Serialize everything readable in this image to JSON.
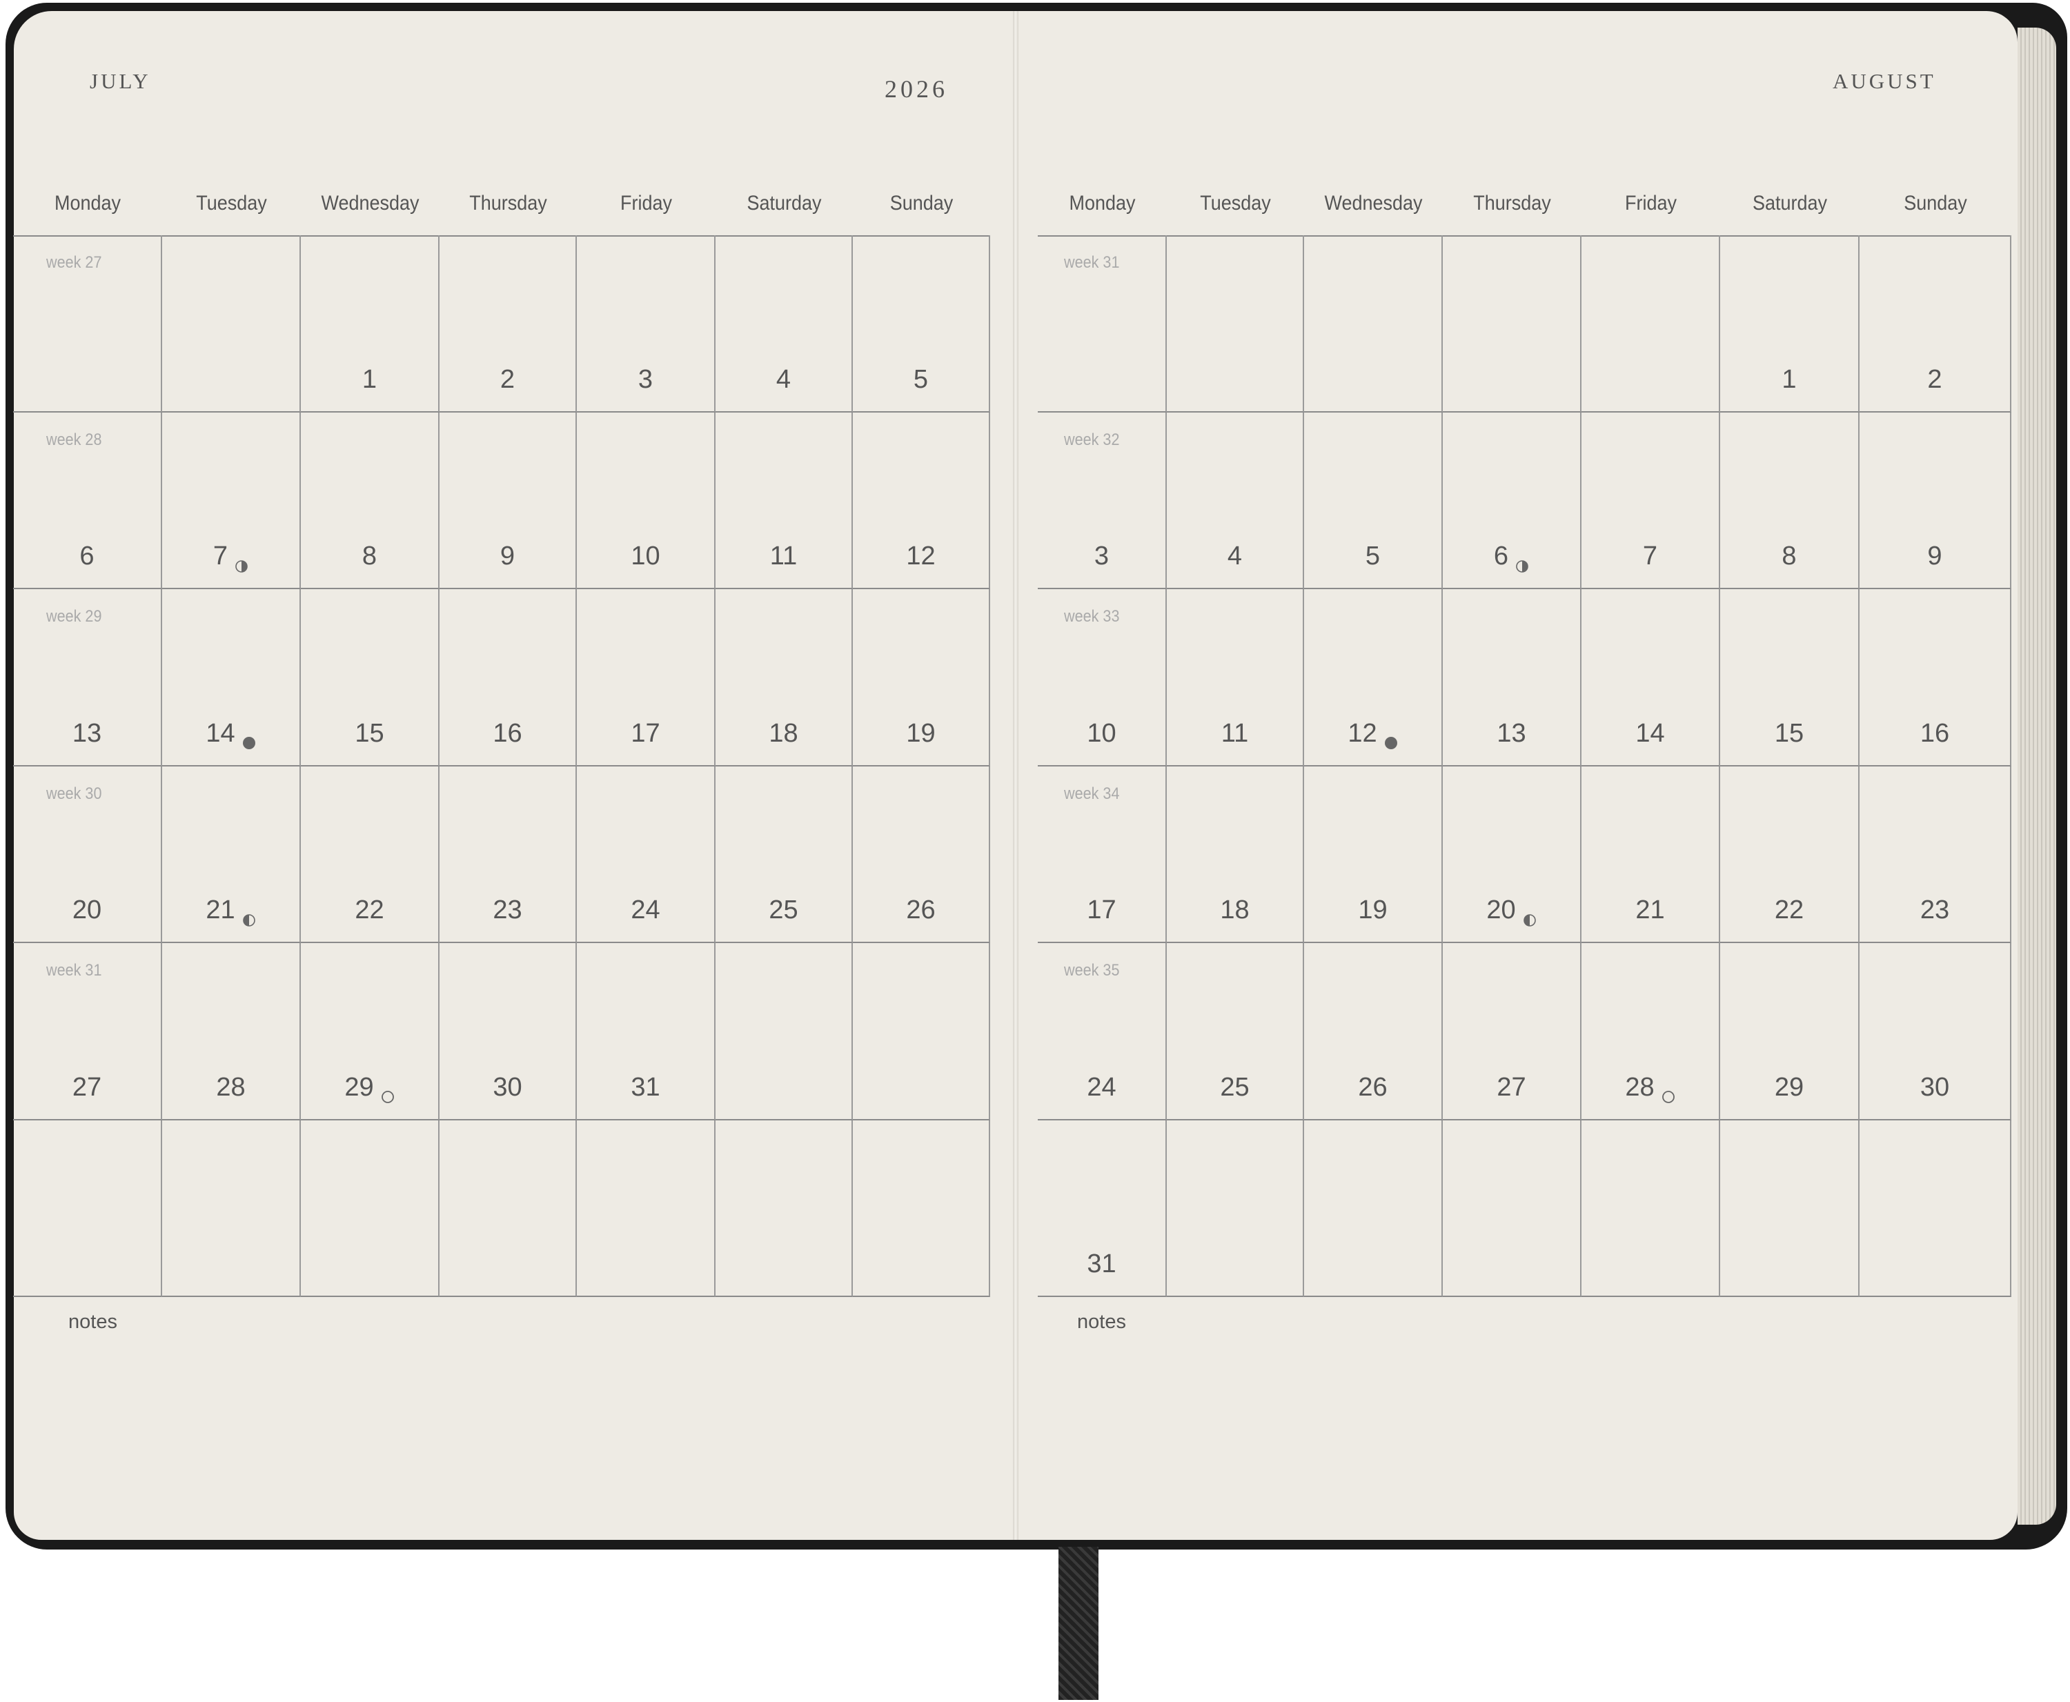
{
  "weekdays": [
    "Monday",
    "Tuesday",
    "Wednesday",
    "Thursday",
    "Friday",
    "Saturday",
    "Sunday"
  ],
  "year": "2026",
  "notes_label": "notes",
  "months": [
    {
      "name": "JULY",
      "weeks": [
        {
          "label": "week 27",
          "days": [
            "",
            "",
            "1",
            "2",
            "3",
            "4",
            "5"
          ]
        },
        {
          "label": "week 28",
          "days": [
            "6",
            "7",
            "8",
            "9",
            "10",
            "11",
            "12"
          ]
        },
        {
          "label": "week 29",
          "days": [
            "13",
            "14",
            "15",
            "16",
            "17",
            "18",
            "19"
          ]
        },
        {
          "label": "week 30",
          "days": [
            "20",
            "21",
            "22",
            "23",
            "24",
            "25",
            "26"
          ]
        },
        {
          "label": "week 31",
          "days": [
            "27",
            "28",
            "29",
            "30",
            "31",
            "",
            ""
          ]
        },
        {
          "label": "",
          "days": [
            "",
            "",
            "",
            "",
            "",
            "",
            ""
          ]
        }
      ],
      "moons": {
        "7": "first-quarter",
        "14": "full-moon",
        "21": "last-quarter",
        "29": "new-moon"
      }
    },
    {
      "name": "AUGUST",
      "weeks": [
        {
          "label": "week 31",
          "days": [
            "",
            "",
            "",
            "",
            "",
            "1",
            "2"
          ]
        },
        {
          "label": "week 32",
          "days": [
            "3",
            "4",
            "5",
            "6",
            "7",
            "8",
            "9"
          ]
        },
        {
          "label": "week 33",
          "days": [
            "10",
            "11",
            "12",
            "13",
            "14",
            "15",
            "16"
          ]
        },
        {
          "label": "week 34",
          "days": [
            "17",
            "18",
            "19",
            "20",
            "21",
            "22",
            "23"
          ]
        },
        {
          "label": "week 35",
          "days": [
            "24",
            "25",
            "26",
            "27",
            "28",
            "29",
            "30"
          ]
        },
        {
          "label": "",
          "days": [
            "31",
            "",
            "",
            "",
            "",
            "",
            ""
          ]
        }
      ],
      "moons": {
        "6": "first-quarter",
        "12": "full-moon",
        "20": "last-quarter",
        "28": "new-moon"
      }
    }
  ],
  "colors": {
    "paper": "#eeebe4",
    "cover": "#1a1a1a",
    "ink": "#555555",
    "grid": "#8a8a8a"
  }
}
